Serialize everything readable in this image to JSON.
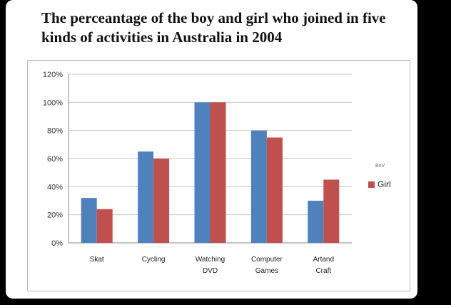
{
  "chart_data": {
    "type": "bar",
    "title": "The perceantage of the boy and girl who joined in five kinds of activities in Australia in 2004",
    "categories": [
      [
        "Skat"
      ],
      [
        "Cycling"
      ],
      [
        "Watching",
        "DVD"
      ],
      [
        "Computer",
        "Games"
      ],
      [
        "Artand",
        "Craft"
      ]
    ],
    "series": [
      {
        "name": "BoV",
        "color": "#4f81bd",
        "values": [
          32,
          65,
          100,
          80,
          30
        ]
      },
      {
        "name": "Girl",
        "color": "#c0504d",
        "values": [
          24,
          60,
          100,
          75,
          45
        ]
      }
    ],
    "ylim": [
      0,
      120
    ],
    "yticks": [
      "0%",
      "20%",
      "40%",
      "60%",
      "80%",
      "100%",
      "120%"
    ],
    "grid": true,
    "legend": "right"
  }
}
